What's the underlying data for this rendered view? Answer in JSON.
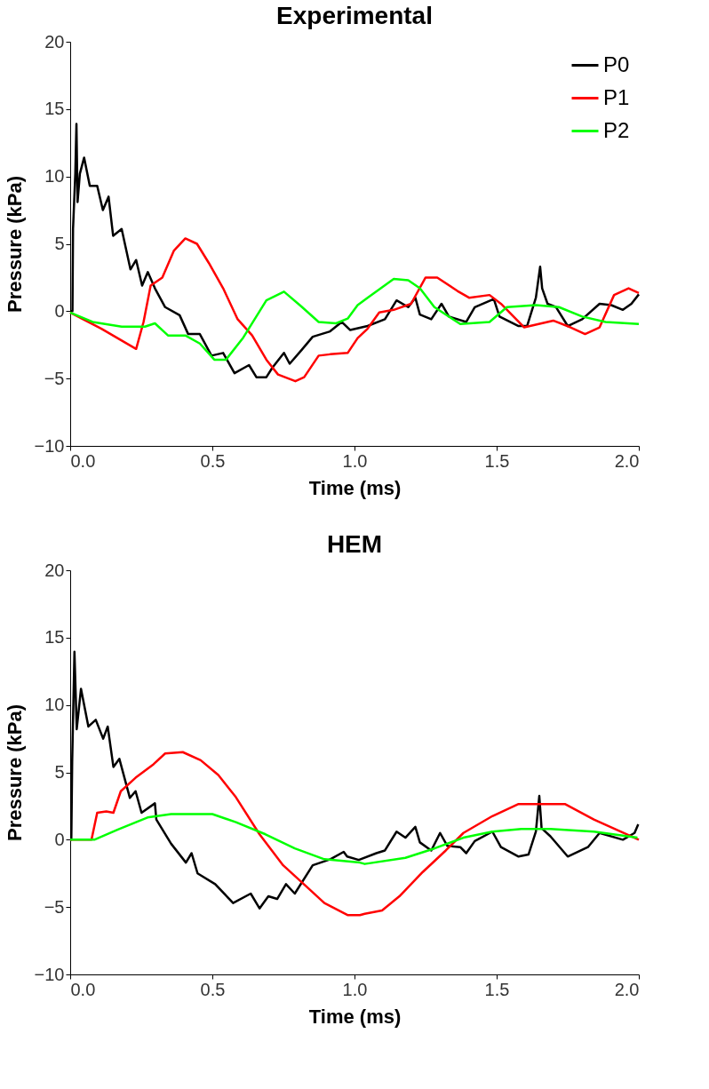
{
  "chart_data": [
    {
      "type": "line",
      "title": "Experimental",
      "xlabel": "Time (ms)",
      "ylabel": "Pressure (kPa)",
      "xlim": [
        0,
        2
      ],
      "ylim": [
        -10,
        20
      ],
      "xticks": [
        {
          "value": 0,
          "label": "0.0"
        },
        {
          "value": 0.5,
          "label": "0.5"
        },
        {
          "value": 1,
          "label": "1.0"
        },
        {
          "value": 1.5,
          "label": "1.5"
        },
        {
          "value": 2,
          "label": "2.0"
        }
      ],
      "yticks": [
        -10,
        -5,
        0,
        5,
        10,
        15,
        20
      ],
      "legend": "top right",
      "grid": false,
      "line_style": "solid",
      "marker": "none",
      "series": [
        {
          "name": "P0",
          "color": "#000000",
          "x": [
            0,
            0.008,
            0.01,
            0.018,
            0.022,
            0.026,
            0.034,
            0.049,
            0.069,
            0.095,
            0.115,
            0.135,
            0.151,
            0.181,
            0.212,
            0.232,
            0.253,
            0.273,
            0.298,
            0.334,
            0.385,
            0.415,
            0.456,
            0.497,
            0.538,
            0.578,
            0.629,
            0.655,
            0.69,
            0.711,
            0.752,
            0.772,
            0.813,
            0.853,
            0.914,
            0.955,
            0.985,
            1.046,
            1.107,
            1.148,
            1.189,
            1.214,
            1.23,
            1.27,
            1.306,
            1.332,
            1.393,
            1.423,
            1.49,
            1.51,
            1.577,
            1.607,
            1.638,
            1.653,
            1.66,
            1.679,
            1.709,
            1.75,
            1.801,
            1.862,
            1.903,
            1.944,
            1.974,
            2.0
          ],
          "values": [
            0,
            0,
            6.1,
            10.2,
            13.9,
            8.1,
            10.2,
            11.4,
            9.3,
            9.3,
            7.5,
            8.5,
            5.6,
            6.1,
            3.1,
            3.8,
            1.9,
            2.9,
            1.7,
            0.3,
            -0.3,
            -1.7,
            -1.7,
            -3.3,
            -3.1,
            -4.6,
            -4.0,
            -4.9,
            -4.9,
            -4.2,
            -3.1,
            -3.9,
            -2.9,
            -1.9,
            -1.5,
            -0.8,
            -1.4,
            -1.1,
            -0.6,
            0.8,
            0.3,
            1.0,
            -0.25,
            -0.6,
            0.55,
            -0.4,
            -0.8,
            0.3,
            0.9,
            -0.4,
            -1.1,
            -1.1,
            1.0,
            3.3,
            1.7,
            0.55,
            0.3,
            -1.1,
            -0.6,
            0.55,
            0.45,
            0.1,
            0.55,
            1.25
          ]
        },
        {
          "name": "P1",
          "color": "#ff0000",
          "x": [
            0,
            0.11,
            0.232,
            0.258,
            0.283,
            0.324,
            0.365,
            0.405,
            0.446,
            0.487,
            0.538,
            0.589,
            0.64,
            0.69,
            0.731,
            0.792,
            0.823,
            0.874,
            0.914,
            0.976,
            1.011,
            1.046,
            1.087,
            1.138,
            1.199,
            1.25,
            1.291,
            1.362,
            1.403,
            1.475,
            1.515,
            1.597,
            1.699,
            1.76,
            1.811,
            1.862,
            1.913,
            1.964,
            2.0
          ],
          "values": [
            -0.1,
            -1.3,
            -2.8,
            -0.8,
            1.9,
            2.5,
            4.5,
            5.4,
            5.0,
            3.6,
            1.7,
            -0.6,
            -1.8,
            -3.6,
            -4.7,
            -5.2,
            -4.9,
            -3.3,
            -3.2,
            -3.1,
            -2.0,
            -1.3,
            -0.1,
            0.1,
            0.55,
            2.5,
            2.5,
            1.5,
            1.0,
            1.2,
            0.55,
            -1.2,
            -0.7,
            -1.2,
            -1.7,
            -1.2,
            1.2,
            1.7,
            1.35
          ]
        },
        {
          "name": "P2",
          "color": "#00ff00",
          "x": [
            0,
            0.079,
            0.181,
            0.263,
            0.298,
            0.344,
            0.405,
            0.456,
            0.507,
            0.548,
            0.609,
            0.69,
            0.752,
            0.813,
            0.874,
            0.935,
            0.976,
            1.011,
            1.046,
            1.138,
            1.189,
            1.23,
            1.281,
            1.372,
            1.475,
            1.536,
            1.638,
            1.719,
            1.801,
            1.883,
            2.0
          ],
          "values": [
            -0.1,
            -0.8,
            -1.15,
            -1.15,
            -0.9,
            -1.8,
            -1.8,
            -2.4,
            -3.6,
            -3.6,
            -1.95,
            0.8,
            1.45,
            0.35,
            -0.8,
            -0.9,
            -0.55,
            0.45,
            1.0,
            2.4,
            2.3,
            1.7,
            0.3,
            -0.95,
            -0.8,
            0.3,
            0.45,
            0.3,
            -0.4,
            -0.8,
            -0.95
          ]
        }
      ]
    },
    {
      "type": "line",
      "title": "HEM",
      "xlabel": "Time (ms)",
      "ylabel": "Pressure (kPa)",
      "xlim": [
        0,
        2
      ],
      "ylim": [
        -10,
        20
      ],
      "xticks": [
        {
          "value": 0,
          "label": "0.0"
        },
        {
          "value": 0.5,
          "label": "0.5"
        },
        {
          "value": 1,
          "label": "1.0"
        },
        {
          "value": 1.5,
          "label": "1.5"
        },
        {
          "value": 2,
          "label": "2.0"
        }
      ],
      "yticks": [
        -10,
        -5,
        0,
        5,
        10,
        15,
        20
      ],
      "legend": "top right",
      "grid": false,
      "line_style": "solid",
      "marker": "none",
      "series": [
        {
          "name": "P0",
          "color": "#000000",
          "x": [
            0,
            0.004,
            0.007,
            0.015,
            0.023,
            0.038,
            0.064,
            0.09,
            0.116,
            0.132,
            0.152,
            0.173,
            0.21,
            0.23,
            0.251,
            0.298,
            0.303,
            0.355,
            0.407,
            0.427,
            0.448,
            0.51,
            0.573,
            0.635,
            0.666,
            0.697,
            0.728,
            0.759,
            0.79,
            0.853,
            0.915,
            0.962,
            0.974,
            1.015,
            1.077,
            1.107,
            1.148,
            1.179,
            1.214,
            1.23,
            1.27,
            1.301,
            1.326,
            1.372,
            1.393,
            1.423,
            1.485,
            1.515,
            1.577,
            1.612,
            1.638,
            1.65,
            1.658,
            1.689,
            1.75,
            1.821,
            1.862,
            1.944,
            1.985,
            1.998
          ],
          "values": [
            0,
            0,
            5.8,
            13.95,
            8.2,
            11.2,
            8.4,
            8.9,
            7.5,
            8.4,
            5.4,
            6.0,
            3.1,
            3.6,
            2.0,
            2.7,
            1.5,
            -0.3,
            -1.7,
            -1.0,
            -2.5,
            -3.3,
            -4.7,
            -4.0,
            -5.1,
            -4.2,
            -4.4,
            -3.3,
            -4.0,
            -1.9,
            -1.45,
            -0.9,
            -1.25,
            -1.5,
            -1.0,
            -0.8,
            0.6,
            0.15,
            0.95,
            -0.2,
            -0.8,
            0.5,
            -0.45,
            -0.55,
            -1.0,
            -0.1,
            0.6,
            -0.55,
            -1.25,
            -1.1,
            0.6,
            3.25,
            0.85,
            0.25,
            -1.25,
            -0.55,
            0.5,
            0.0,
            0.5,
            1.15
          ]
        },
        {
          "name": "P1",
          "color": "#ff0000",
          "x": [
            0,
            0.075,
            0.095,
            0.127,
            0.152,
            0.178,
            0.23,
            0.293,
            0.334,
            0.396,
            0.459,
            0.521,
            0.583,
            0.666,
            0.749,
            0.832,
            0.894,
            0.977,
            1.019,
            1.036,
            1.097,
            1.158,
            1.24,
            1.321,
            1.383,
            1.485,
            1.577,
            1.74,
            1.842,
            2.0
          ],
          "values": [
            0,
            0,
            2.0,
            2.1,
            2.0,
            3.6,
            4.6,
            5.6,
            6.4,
            6.5,
            5.9,
            4.8,
            3.15,
            0.4,
            -1.9,
            -3.5,
            -4.7,
            -5.6,
            -5.6,
            -5.5,
            -5.25,
            -4.2,
            -2.4,
            -0.8,
            0.5,
            1.75,
            2.65,
            2.65,
            1.5,
            0.0
          ]
        },
        {
          "name": "P2",
          "color": "#00ff00",
          "x": [
            0,
            0.085,
            0.168,
            0.272,
            0.355,
            0.5,
            0.583,
            0.687,
            0.79,
            0.894,
            1.019,
            1.036,
            1.179,
            1.281,
            1.383,
            1.485,
            1.587,
            1.689,
            1.842,
            1.995
          ],
          "values": [
            0,
            0,
            0.75,
            1.65,
            1.9,
            1.9,
            1.3,
            0.4,
            -0.65,
            -1.45,
            -1.7,
            -1.8,
            -1.35,
            -0.65,
            0.15,
            0.6,
            0.8,
            0.8,
            0.6,
            0.15
          ]
        }
      ]
    }
  ]
}
